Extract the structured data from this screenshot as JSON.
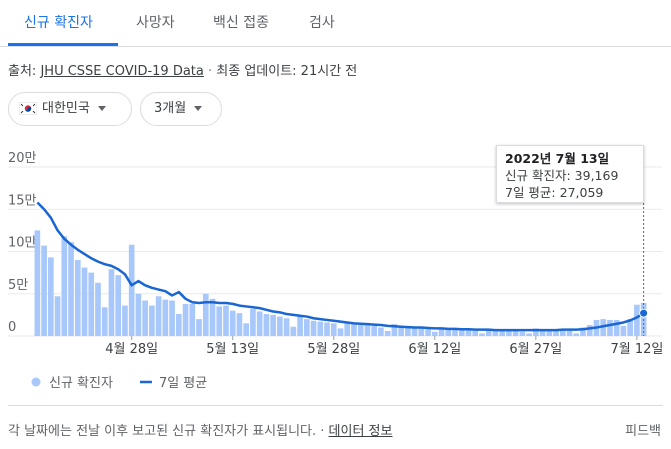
{
  "tabs": [
    "신규 확진자",
    "사망자",
    "백신 접종",
    "검사"
  ],
  "source": {
    "label": "출처:",
    "link": "JHU CSSE COVID-19 Data",
    "updated": "최종 업데이트: 21시간 전"
  },
  "filters": {
    "region": "대한민국",
    "period": "3개월"
  },
  "footer": {
    "note": "각 날짜에는 전날 이후 보고된 신규 확진자가 표시됩니다.",
    "link": "데이터 정보",
    "feedback": "피드백"
  },
  "chart_data": {
    "type": "bar",
    "categories": [
      null,
      null,
      null,
      null,
      null,
      null,
      null,
      null,
      null,
      null,
      null,
      null,
      null,
      null,
      "4월 28일",
      null,
      null,
      null,
      null,
      null,
      null,
      null,
      null,
      null,
      null,
      null,
      null,
      null,
      null,
      "5월 13일",
      null,
      null,
      null,
      null,
      null,
      null,
      null,
      null,
      null,
      null,
      null,
      null,
      null,
      null,
      "5월 28일",
      null,
      null,
      null,
      null,
      null,
      null,
      null,
      null,
      null,
      null,
      null,
      null,
      null,
      null,
      "6월 12일",
      null,
      null,
      null,
      null,
      null,
      null,
      null,
      null,
      null,
      null,
      null,
      null,
      null,
      null,
      "6월 27일",
      null,
      null,
      null,
      null,
      null,
      null,
      null,
      null,
      null,
      null,
      null,
      null,
      null,
      null,
      "7월 12일",
      null
    ],
    "series": [
      {
        "name": "신규 확진자",
        "type": "bar",
        "color": "#a8c7fa",
        "values": [
          125000,
          107000,
          93000,
          47000,
          118000,
          111000,
          90000,
          81000,
          75000,
          63000,
          34000,
          79000,
          72000,
          36000,
          108000,
          50000,
          42000,
          36000,
          47000,
          43000,
          42000,
          26000,
          38000,
          38000,
          20000,
          50000,
          44000,
          35000,
          36000,
          30000,
          27000,
          15000,
          32000,
          29000,
          26000,
          25000,
          23000,
          21000,
          11000,
          24000,
          20000,
          18000,
          17000,
          16000,
          15000,
          9000,
          17000,
          15000,
          13000,
          13000,
          12000,
          10000,
          6000,
          14000,
          12000,
          11000,
          10000,
          9000,
          8000,
          5000,
          10000,
          9000,
          8000,
          8000,
          7000,
          6000,
          3000,
          8000,
          7000,
          7000,
          7000,
          6000,
          5000,
          3000,
          9000,
          8000,
          7000,
          7000,
          7000,
          6000,
          3000,
          10000,
          13000,
          19000,
          20000,
          19000,
          19000,
          12000,
          20000,
          37000,
          39169
        ]
      },
      {
        "name": "7일 평균",
        "type": "line",
        "color": "#1a66d2",
        "values": [
          158000,
          150000,
          140000,
          125000,
          115000,
          108000,
          102000,
          97000,
          92000,
          88000,
          85000,
          83000,
          79000,
          73000,
          60000,
          65000,
          60000,
          57000,
          55000,
          53000,
          48000,
          52000,
          44000,
          40000,
          39000,
          40000,
          40000,
          39000,
          39000,
          38000,
          36000,
          35000,
          34000,
          33000,
          31000,
          29000,
          28000,
          26000,
          25000,
          24000,
          23000,
          21000,
          20000,
          19000,
          18000,
          17000,
          16000,
          15000,
          14500,
          14000,
          13500,
          13000,
          12000,
          11500,
          11000,
          10500,
          10000,
          10000,
          9500,
          9000,
          9000,
          8500,
          8500,
          8000,
          8000,
          7500,
          7500,
          7500,
          7000,
          7000,
          7000,
          7000,
          7000,
          7000,
          7000,
          7000,
          7000,
          7000,
          7500,
          7500,
          7500,
          8000,
          9000,
          10000,
          11500,
          13000,
          14500,
          16000,
          18500,
          22000,
          27059
        ]
      }
    ],
    "ylim": [
      0,
      200000
    ],
    "yticks": [
      0,
      {
        "value": 50000,
        "label": "5만"
      },
      {
        "value": 100000,
        "label": "10만"
      },
      {
        "value": 150000,
        "label": "15만"
      },
      {
        "value": 200000,
        "label": "20만"
      }
    ],
    "grid": true,
    "tooltip": {
      "title": "2022년 7월 13일",
      "lines": [
        "신규 확진자: 39,169",
        "7일 평균: 27,059"
      ]
    }
  }
}
